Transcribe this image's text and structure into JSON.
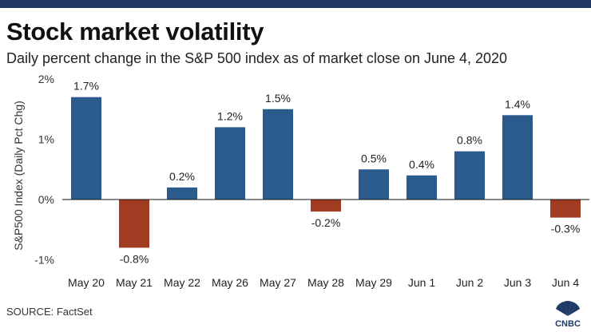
{
  "header": {
    "title": "Stock market volatility",
    "subtitle": "Daily percent change in the S&P 500 index as of market close on June 4, 2020"
  },
  "footer": {
    "source": "SOURCE: FactSet",
    "logo_text": "CNBC"
  },
  "colors": {
    "positive": "#2b5a8c",
    "negative": "#a13b22",
    "top_bar": "#1f3864"
  },
  "chart_data": {
    "type": "bar",
    "title": "Stock market volatility",
    "subtitle": "Daily percent change in the S&P 500 index as of market close on June 4, 2020",
    "xlabel": "",
    "ylabel": "S&P500 Index (Daily Pct Chg)",
    "categories": [
      "May 20",
      "May 21",
      "May 22",
      "May 26",
      "May 27",
      "May 28",
      "May 29",
      "Jun 1",
      "Jun 2",
      "Jun 3",
      "Jun 4"
    ],
    "values": [
      1.7,
      -0.8,
      0.2,
      1.2,
      1.5,
      -0.2,
      0.5,
      0.4,
      0.8,
      1.4,
      -0.3
    ],
    "data_labels": [
      "1.7%",
      "-0.8%",
      "0.2%",
      "1.2%",
      "1.5%",
      "-0.2%",
      "0.5%",
      "0.4%",
      "0.8%",
      "1.4%",
      "-0.3%"
    ],
    "yticks": [
      2,
      1,
      0,
      -1
    ],
    "ytick_labels": [
      "2%",
      "1%",
      "0%",
      "-1%"
    ],
    "ylim": [
      -1.05,
      2.05
    ],
    "grid": false,
    "legend": "none"
  }
}
